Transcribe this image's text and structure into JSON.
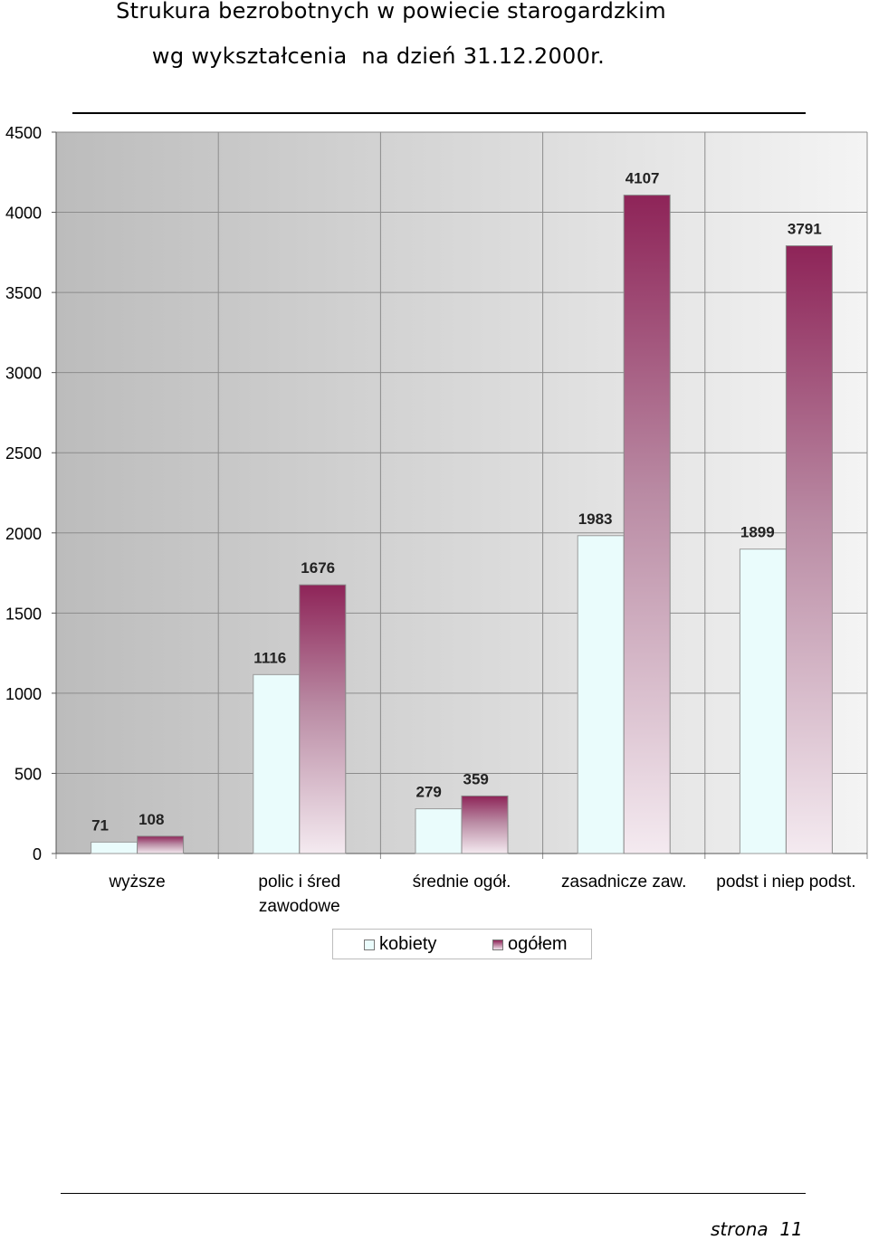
{
  "chart_data": {
    "type": "bar",
    "title": [
      "Strukura bezrobotnych w powiecie starogardzkim",
      "wg wykształcenia  na dzień 31.12.2000r."
    ],
    "categories": [
      [
        "wyższe"
      ],
      [
        "polic i śred",
        "zawodowe"
      ],
      [
        "średnie ogół."
      ],
      [
        "zasadnicze zaw."
      ],
      [
        "podst i niep podst."
      ]
    ],
    "series": [
      {
        "name": "kobiety",
        "values": [
          71,
          1116,
          279,
          1983,
          1899
        ],
        "labels": [
          "71",
          "1116",
          "279",
          "1983",
          "1899"
        ],
        "color": "#eafcfc"
      },
      {
        "name": "ogółem",
        "values": [
          108,
          1676,
          359,
          4107,
          3791
        ],
        "labels": [
          "108",
          "1676",
          "359",
          "4107",
          "3791"
        ],
        "color": "#8e2458"
      }
    ],
    "yticks": [
      "0",
      "500",
      "1000",
      "1500",
      "2000",
      "2500",
      "3000",
      "3500",
      "4000",
      "4500"
    ],
    "ylim": [
      0,
      4500
    ],
    "legend": "bottom-center",
    "grid": true
  },
  "footer": {
    "page": "strona  11"
  }
}
